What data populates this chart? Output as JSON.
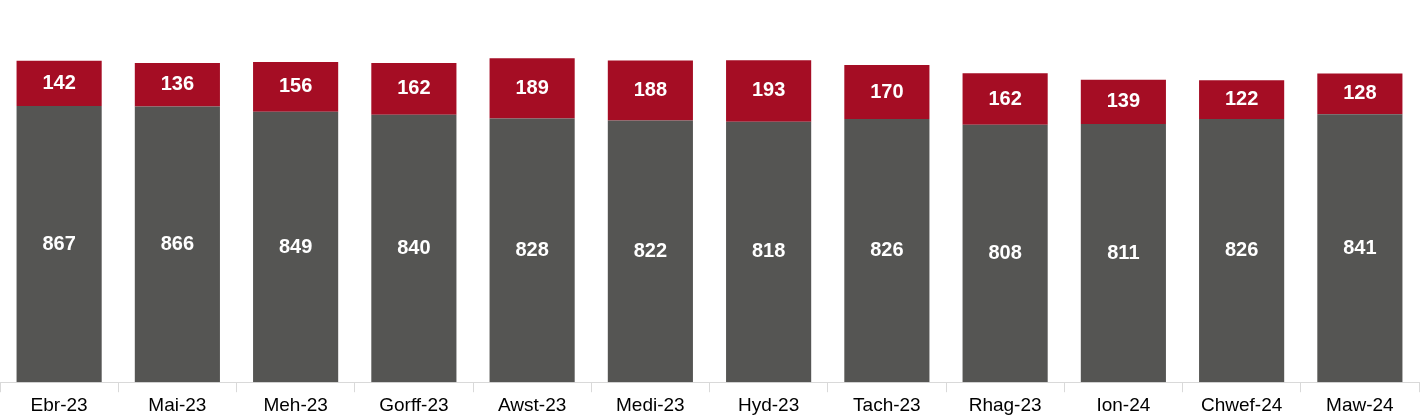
{
  "chart_data": {
    "type": "bar",
    "stacked": true,
    "data_labels": true,
    "legend": false,
    "grid": false,
    "tick_labels": "x",
    "categories": [
      "Ebr-23",
      "Mai-23",
      "Meh-23",
      "Gorff-23",
      "Awst-23",
      "Medi-23",
      "Hyd-23",
      "Tach-23",
      "Rhag-23",
      "Ion-24",
      "Chwef-24",
      "Maw-24"
    ],
    "series": [
      {
        "color": "#555553",
        "values": [
          867,
          866,
          849,
          840,
          828,
          822,
          818,
          826,
          808,
          811,
          826,
          841
        ]
      },
      {
        "color": "#a50d24",
        "values": [
          142,
          136,
          156,
          162,
          189,
          188,
          193,
          170,
          162,
          139,
          122,
          128
        ]
      }
    ]
  }
}
